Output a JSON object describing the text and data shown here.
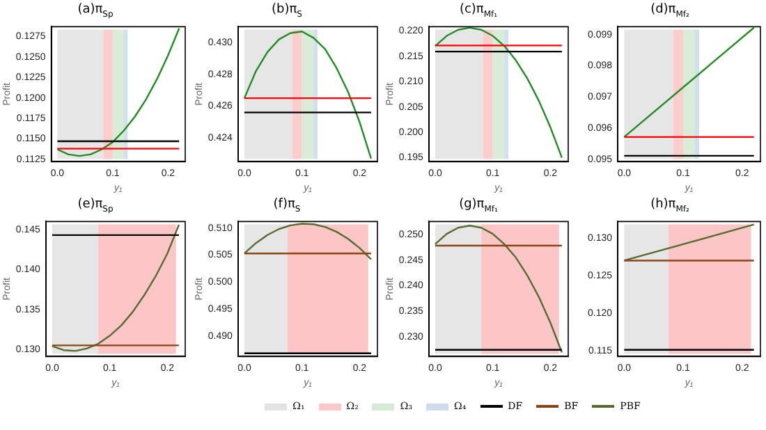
{
  "chart_data": [
    {
      "type": "line",
      "title": "(a)π$_{Sp}$",
      "xlabel": "y₁",
      "ylabel": "Profit",
      "marker": "none",
      "legend": "bottom",
      "x": [
        0,
        0.02,
        0.04,
        0.06,
        0.08,
        0.1,
        0.12,
        0.14,
        0.16,
        0.18,
        0.2,
        0.22
      ],
      "xlim": [
        -0.011,
        0.231
      ],
      "xticks": [
        {
          "value": 0,
          "label": "0.0"
        },
        {
          "value": 0.1,
          "label": "0.1"
        },
        {
          "value": 0.2,
          "label": "0.2"
        }
      ],
      "ylim": [
        0.1122,
        0.1287
      ],
      "yticks": [
        0.1125,
        {
          "value": 0.115,
          "label": "0.1150"
        },
        0.1175,
        {
          "value": 0.12,
          "label": "0.1200"
        },
        0.1225,
        {
          "value": 0.125,
          "label": "0.1250"
        },
        0.1275
      ],
      "bands": [
        {
          "axis": "x",
          "from": 0,
          "to": 0.083,
          "label": "Ω₁",
          "color": "#e3e3e3"
        },
        {
          "axis": "x",
          "from": 0.083,
          "to": 0.1,
          "label": "Ω₂",
          "color": "#fcc8c8"
        },
        {
          "axis": "x",
          "from": 0.1,
          "to": 0.12,
          "label": "Ω₃",
          "color": "#d5ead3"
        },
        {
          "axis": "x",
          "from": 0.12,
          "to": 0.127,
          "label": "Ω₄",
          "color": "#cddbea"
        }
      ],
      "series": [
        {
          "color": "#000000",
          "values": [
            0.1147,
            0.1147,
            0.1147,
            0.1147,
            0.1147,
            0.1147,
            0.1147,
            0.1147,
            0.1147,
            0.1147,
            0.1147,
            0.1147
          ]
        },
        {
          "color": "#ff0000",
          "values": [
            0.1138,
            0.1138,
            0.1138,
            0.1138,
            0.1138,
            0.1138,
            0.1138,
            0.1138,
            0.1138,
            0.1138,
            0.1138,
            0.1138
          ]
        },
        {
          "color": "#228b22",
          "values": [
            0.1137,
            0.1131,
            0.1129,
            0.1131,
            0.1137,
            0.1146,
            0.116,
            0.1177,
            0.1198,
            0.1223,
            0.1252,
            0.1285
          ]
        }
      ]
    },
    {
      "type": "line",
      "title": "(b)π$_{S}$",
      "xlabel": "y₁",
      "ylabel": "Profit",
      "marker": "none",
      "x": [
        0,
        0.02,
        0.04,
        0.06,
        0.08,
        0.1,
        0.12,
        0.14,
        0.16,
        0.18,
        0.2,
        0.22
      ],
      "xlim": [
        -0.011,
        0.231
      ],
      "xticks": [
        {
          "value": 0,
          "label": "0.0"
        },
        {
          "value": 0.1,
          "label": "0.1"
        },
        {
          "value": 0.2,
          "label": "0.2"
        }
      ],
      "ylim": [
        0.4225,
        0.431
      ],
      "yticks": [
        0.424,
        0.426,
        0.428,
        {
          "value": 0.43,
          "label": "0.430"
        }
      ],
      "bands": [
        {
          "axis": "x",
          "from": 0,
          "to": 0.083,
          "color": "#e3e3e3"
        },
        {
          "axis": "x",
          "from": 0.083,
          "to": 0.1,
          "color": "#fcc8c8"
        },
        {
          "axis": "x",
          "from": 0.1,
          "to": 0.12,
          "color": "#d5ead3"
        },
        {
          "axis": "x",
          "from": 0.12,
          "to": 0.127,
          "color": "#cddbea"
        }
      ],
      "series": [
        {
          "color": "#000000",
          "values": [
            0.4256,
            0.4256,
            0.4256,
            0.4256,
            0.4256,
            0.4256,
            0.4256,
            0.4256,
            0.4256,
            0.4256,
            0.4256,
            0.4256
          ]
        },
        {
          "color": "#ff0000",
          "values": [
            0.4265,
            0.4265,
            0.4265,
            0.4265,
            0.4265,
            0.4265,
            0.4265,
            0.4265,
            0.4265,
            0.4265,
            0.4265,
            0.4265
          ]
        },
        {
          "color": "#228b22",
          "values": [
            0.4265,
            0.4282,
            0.4294,
            0.4302,
            0.4306,
            0.4307,
            0.4303,
            0.4296,
            0.4284,
            0.4269,
            0.425,
            0.4227
          ]
        }
      ]
    },
    {
      "type": "line",
      "title": "(c)π$_{Mf₁}$",
      "xlabel": "y₁",
      "ylabel": "Profit",
      "marker": "none",
      "x": [
        0,
        0.02,
        0.04,
        0.06,
        0.08,
        0.1,
        0.12,
        0.14,
        0.16,
        0.18,
        0.2,
        0.22
      ],
      "xlim": [
        -0.011,
        0.231
      ],
      "xticks": [
        {
          "value": 0,
          "label": "0.0"
        },
        {
          "value": 0.1,
          "label": "0.1"
        },
        {
          "value": 0.2,
          "label": "0.2"
        }
      ],
      "ylim": [
        0.1942,
        0.2208
      ],
      "yticks": [
        0.195,
        {
          "value": 0.2,
          "label": "0.200"
        },
        0.205,
        {
          "value": 0.21,
          "label": "0.210"
        },
        0.215,
        {
          "value": 0.22,
          "label": "0.220"
        }
      ],
      "bands": [
        {
          "axis": "x",
          "from": 0,
          "to": 0.083,
          "color": "#e3e3e3"
        },
        {
          "axis": "x",
          "from": 0.083,
          "to": 0.1,
          "color": "#fcc8c8"
        },
        {
          "axis": "x",
          "from": 0.1,
          "to": 0.12,
          "color": "#d5ead3"
        },
        {
          "axis": "x",
          "from": 0.12,
          "to": 0.127,
          "color": "#cddbea"
        }
      ],
      "series": [
        {
          "color": "#000000",
          "values": [
            0.2159,
            0.2159,
            0.2159,
            0.2159,
            0.2159,
            0.2159,
            0.2159,
            0.2159,
            0.2159,
            0.2159,
            0.2159,
            0.2159
          ]
        },
        {
          "color": "#ff0000",
          "values": [
            0.2171,
            0.2171,
            0.2171,
            0.2171,
            0.2171,
            0.2171,
            0.2171,
            0.2171,
            0.2171,
            0.2171,
            0.2171,
            0.2171
          ]
        },
        {
          "color": "#228b22",
          "values": [
            0.217,
            0.219,
            0.2202,
            0.2206,
            0.2202,
            0.219,
            0.217,
            0.2142,
            0.2106,
            0.2062,
            0.201,
            0.195
          ]
        }
      ]
    },
    {
      "type": "line",
      "title": "(d)π$_{Mf₂}$",
      "xlabel": "y₁",
      "marker": "none",
      "x": [
        0,
        0.22
      ],
      "xlim": [
        -0.011,
        0.231
      ],
      "xticks": [
        {
          "value": 0,
          "label": "0.0"
        },
        {
          "value": 0.1,
          "label": "0.1"
        },
        {
          "value": 0.2,
          "label": "0.2"
        }
      ],
      "ylim": [
        0.09493,
        0.09925
      ],
      "yticks": [
        0.095,
        0.096,
        0.097,
        0.098,
        0.099
      ],
      "bands": [
        {
          "axis": "x",
          "from": 0,
          "to": 0.083,
          "color": "#e3e3e3"
        },
        {
          "axis": "x",
          "from": 0.083,
          "to": 0.1,
          "color": "#fcc8c8"
        },
        {
          "axis": "x",
          "from": 0.1,
          "to": 0.12,
          "color": "#d5ead3"
        },
        {
          "axis": "x",
          "from": 0.12,
          "to": 0.127,
          "color": "#cddbea"
        }
      ],
      "series": [
        {
          "color": "#000000",
          "values": [
            0.09512,
            0.09512
          ]
        },
        {
          "color": "#ff0000",
          "values": [
            0.09572,
            0.09572
          ]
        },
        {
          "color": "#228b22",
          "values": [
            0.09572,
            0.09922
          ]
        }
      ]
    },
    {
      "type": "line",
      "title": "(e)π$_{Sp}$",
      "xlabel": "y₁",
      "ylabel": "Profit",
      "marker": "none",
      "x": [
        0,
        0.02,
        0.04,
        0.06,
        0.08,
        0.1,
        0.12,
        0.14,
        0.16,
        0.18,
        0.2,
        0.22
      ],
      "xlim": [
        -0.011,
        0.231
      ],
      "xticks": [
        {
          "value": 0,
          "label": "0.0"
        },
        {
          "value": 0.1,
          "label": "0.1"
        },
        {
          "value": 0.2,
          "label": "0.2"
        }
      ],
      "ylim": [
        0.1291,
        0.146
      ],
      "yticks": [
        {
          "value": 0.13,
          "label": "0.130"
        },
        0.135,
        {
          "value": 0.14,
          "label": "0.140"
        },
        0.145
      ],
      "bands": [
        {
          "axis": "x",
          "from": 0,
          "to": 0.08,
          "color": "#e3e3e3"
        },
        {
          "axis": "x",
          "from": 0.08,
          "to": 0.215,
          "color": "#fcc0c0"
        }
      ],
      "series": [
        {
          "color": "#000000",
          "values": [
            0.1443,
            0.1443,
            0.1443,
            0.1443,
            0.1443,
            0.1443,
            0.1443,
            0.1443,
            0.1443,
            0.1443,
            0.1443,
            0.1443
          ]
        },
        {
          "color": "#8b4513",
          "values": [
            0.1305,
            0.1305,
            0.1305,
            0.1305,
            0.1305,
            0.1305,
            0.1305,
            0.1305,
            0.1305,
            0.1305,
            0.1305,
            0.1305
          ]
        },
        {
          "color": "#556b2f",
          "values": [
            0.1304,
            0.1299,
            0.1298,
            0.1301,
            0.1307,
            0.1317,
            0.133,
            0.1347,
            0.1368,
            0.1392,
            0.142,
            0.1456
          ]
        }
      ]
    },
    {
      "type": "line",
      "title": "(f)π$_{S}$",
      "xlabel": "y₁",
      "ylabel": "Profit",
      "marker": "none",
      "x": [
        0,
        0.02,
        0.04,
        0.06,
        0.08,
        0.1,
        0.12,
        0.14,
        0.16,
        0.18,
        0.2,
        0.22
      ],
      "xlim": [
        -0.011,
        0.231
      ],
      "xticks": [
        {
          "value": 0,
          "label": "0.0"
        },
        {
          "value": 0.1,
          "label": "0.1"
        },
        {
          "value": 0.2,
          "label": "0.2"
        }
      ],
      "ylim": [
        0.4862,
        0.5112
      ],
      "yticks": [
        {
          "value": 0.49,
          "label": "0.490"
        },
        0.495,
        {
          "value": 0.5,
          "label": "0.500"
        },
        0.505,
        {
          "value": 0.51,
          "label": "0.510"
        }
      ],
      "bands": [
        {
          "axis": "x",
          "from": 0,
          "to": 0.075,
          "color": "#e3e3e3"
        },
        {
          "axis": "x",
          "from": 0.075,
          "to": 0.215,
          "color": "#fcc0c0"
        }
      ],
      "series": [
        {
          "color": "#000000",
          "values": [
            0.4868,
            0.4868,
            0.4868,
            0.4868,
            0.4868,
            0.4868,
            0.4868,
            0.4868,
            0.4868,
            0.4868,
            0.4868,
            0.4868
          ]
        },
        {
          "color": "#8b4513",
          "values": [
            0.5053,
            0.5053,
            0.5053,
            0.5053,
            0.5053,
            0.5053,
            0.5053,
            0.5053,
            0.5053,
            0.5053,
            0.5053,
            0.5053
          ]
        },
        {
          "color": "#556b2f",
          "values": [
            0.5053,
            0.5072,
            0.5087,
            0.5098,
            0.5105,
            0.5108,
            0.5107,
            0.5102,
            0.5093,
            0.508,
            0.5063,
            0.5042
          ]
        }
      ]
    },
    {
      "type": "line",
      "title": "(g)π$_{Mf₁}$",
      "xlabel": "y₁",
      "ylabel": "Profit",
      "marker": "none",
      "x": [
        0,
        0.02,
        0.04,
        0.06,
        0.08,
        0.1,
        0.12,
        0.14,
        0.16,
        0.18,
        0.2,
        0.22
      ],
      "xlim": [
        -0.011,
        0.231
      ],
      "xticks": [
        {
          "value": 0,
          "label": "0.0"
        },
        {
          "value": 0.1,
          "label": "0.1"
        },
        {
          "value": 0.2,
          "label": "0.2"
        }
      ],
      "ylim": [
        0.2262,
        0.2525
      ],
      "yticks": [
        {
          "value": 0.23,
          "label": "0.230"
        },
        0.235,
        {
          "value": 0.24,
          "label": "0.240"
        },
        0.245,
        {
          "value": 0.25,
          "label": "0.250"
        }
      ],
      "bands": [
        {
          "axis": "x",
          "from": 0,
          "to": 0.08,
          "color": "#e3e3e3"
        },
        {
          "axis": "x",
          "from": 0.08,
          "to": 0.215,
          "color": "#fcc0c0"
        }
      ],
      "series": [
        {
          "color": "#000000",
          "values": [
            0.2275,
            0.2275,
            0.2275,
            0.2275,
            0.2275,
            0.2275,
            0.2275,
            0.2275,
            0.2275,
            0.2275,
            0.2275,
            0.2275
          ]
        },
        {
          "color": "#8b4513",
          "values": [
            0.2478,
            0.2478,
            0.2478,
            0.2478,
            0.2478,
            0.2478,
            0.2478,
            0.2478,
            0.2478,
            0.2478,
            0.2478,
            0.2478
          ]
        },
        {
          "color": "#556b2f",
          "values": [
            0.2481,
            0.2501,
            0.2513,
            0.2517,
            0.2513,
            0.2501,
            0.2481,
            0.2455,
            0.242,
            0.2378,
            0.2328,
            0.227
          ]
        }
      ]
    },
    {
      "type": "line",
      "title": "(h)π$_{Mf₂}$",
      "xlabel": "y₁",
      "marker": "none",
      "legend": "bottom",
      "x": [
        0,
        0.22
      ],
      "xlim": [
        -0.011,
        0.231
      ],
      "xticks": [
        {
          "value": 0,
          "label": "0.0"
        },
        {
          "value": 0.1,
          "label": "0.1"
        },
        {
          "value": 0.2,
          "label": "0.2"
        }
      ],
      "ylim": [
        0.1142,
        0.1322
      ],
      "yticks": [
        0.115,
        {
          "value": 0.12,
          "label": "0.120"
        },
        0.125,
        {
          "value": 0.13,
          "label": "0.130"
        }
      ],
      "bands": [
        {
          "axis": "x",
          "from": 0,
          "to": 0.075,
          "color": "#e3e3e3"
        },
        {
          "axis": "x",
          "from": 0.075,
          "to": 0.215,
          "color": "#fcc0c0"
        }
      ],
      "series": [
        {
          "name": "DF",
          "color": "#000000",
          "values": [
            0.1151,
            0.1151
          ]
        },
        {
          "name": "BF",
          "color": "#8b4513",
          "values": [
            0.127,
            0.127
          ]
        },
        {
          "name": "PBF",
          "color": "#556b2f",
          "values": [
            0.127,
            0.1318
          ]
        }
      ]
    }
  ]
}
